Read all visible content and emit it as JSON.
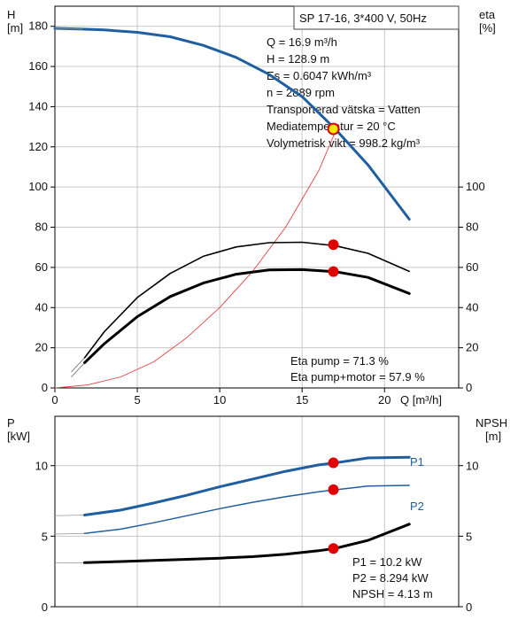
{
  "chart_data": [
    {
      "type": "line",
      "title": "SP 17-16, 3*400 V, 50Hz",
      "xlabel": "Q [m³/h]",
      "xlim": [
        0,
        24.5
      ],
      "xticks": [
        0,
        5,
        10,
        15,
        20
      ],
      "ylabel_left": [
        "H",
        "[m]"
      ],
      "ylim_left": [
        0,
        190
      ],
      "yticks_left": [
        0,
        20,
        40,
        60,
        80,
        100,
        120,
        140,
        160,
        180
      ],
      "ylabel_right": [
        "eta",
        "[%]"
      ],
      "ylim_right": [
        0,
        190
      ],
      "yticks_right": [
        0,
        20,
        40,
        60,
        80,
        100
      ],
      "grid": true,
      "series": [
        {
          "role": "head",
          "axis": "left",
          "color": "#1f5ea0",
          "x": [
            0,
            1.7,
            3,
            5,
            7,
            9,
            11,
            13,
            15,
            17,
            19,
            21.5
          ],
          "y": [
            179,
            178.6,
            178.2,
            177,
            174.8,
            170.5,
            164.5,
            156,
            145,
            129,
            111,
            84
          ]
        },
        {
          "role": "system-curve",
          "axis": "left",
          "color": "#e04040",
          "x": [
            0,
            2,
            4,
            6,
            8,
            10,
            12,
            14,
            16,
            17.2
          ],
          "y": [
            0,
            1.5,
            5.5,
            13,
            25,
            40,
            58,
            80,
            108,
            131
          ]
        },
        {
          "role": "eta-pump",
          "axis": "right",
          "color": "#000000",
          "x": [
            1.8,
            3,
            5,
            7,
            9,
            11,
            13,
            15,
            17,
            19,
            21.5
          ],
          "y": [
            15,
            28,
            45,
            57,
            65.5,
            70.2,
            72.3,
            72.5,
            70.8,
            67,
            58
          ]
        },
        {
          "role": "eta-pump-motor",
          "axis": "right",
          "color": "#000000",
          "x": [
            1.8,
            3,
            5,
            7,
            9,
            11,
            13,
            15,
            17,
            19,
            21.5
          ],
          "y": [
            12.5,
            22,
            35.5,
            45.5,
            52.2,
            56.6,
            58.7,
            58.9,
            57.9,
            55,
            47
          ]
        }
      ],
      "markers": [
        {
          "series": "head",
          "x": 16.9,
          "y": 128.9,
          "color": "#f2e600",
          "stroke": "#e00000"
        },
        {
          "series": "eta-pump",
          "x": 16.9,
          "y": 71.3,
          "color": "#e00000"
        },
        {
          "series": "eta-pump-motor",
          "x": 16.9,
          "y": 57.9,
          "color": "#e00000"
        }
      ],
      "info_box": [
        "Q = 16.9 m³/h",
        "H = 128.9 m",
        "Es = 0.6047 kWh/m³",
        "n = 2889 rpm",
        "Transporterad vätska = Vatten",
        "Mediatemperatur = 20 °C",
        "Volymetrisk vikt = 998.2 kg/m³"
      ],
      "annotations": [
        "Eta pump = 71.3 %",
        "Eta pump+motor = 57.9 %"
      ]
    },
    {
      "type": "line",
      "xlim": [
        0,
        24.5
      ],
      "ylabel_left": [
        "P",
        "[kW]"
      ],
      "ylim_left": [
        0,
        13.5
      ],
      "yticks_left": [
        0,
        5,
        10
      ],
      "ylabel_right": [
        "NPSH",
        "[m]"
      ],
      "ylim_right": [
        0,
        13.5
      ],
      "yticks_right": [
        0,
        5,
        10
      ],
      "grid": true,
      "series": [
        {
          "name": "P1",
          "axis": "left",
          "color": "#1f5ea0",
          "x": [
            0,
            1.8,
            4,
            6,
            8,
            10,
            12,
            14,
            16,
            17,
            19,
            21.5
          ],
          "y": [
            6.45,
            6.5,
            6.85,
            7.35,
            7.9,
            8.5,
            9.05,
            9.6,
            10.05,
            10.2,
            10.55,
            10.6
          ]
        },
        {
          "name": "P2",
          "axis": "left",
          "color": "#1f5ea0",
          "x": [
            0,
            1.8,
            4,
            6,
            8,
            10,
            12,
            14,
            16,
            17,
            19,
            21.5
          ],
          "y": [
            5.15,
            5.2,
            5.5,
            5.95,
            6.45,
            6.95,
            7.4,
            7.8,
            8.15,
            8.29,
            8.55,
            8.6
          ]
        },
        {
          "name": "NPSH",
          "axis": "right",
          "color": "#000000",
          "x": [
            0,
            1.8,
            4,
            6,
            8,
            10,
            12,
            14,
            16,
            17,
            19,
            21.5
          ],
          "y": [
            3.1,
            3.12,
            3.2,
            3.28,
            3.36,
            3.44,
            3.55,
            3.72,
            3.97,
            4.13,
            4.7,
            5.85
          ]
        }
      ],
      "series_labels": [
        "P1",
        "P2"
      ],
      "markers": [
        {
          "series": "P1",
          "x": 16.9,
          "y": 10.2,
          "color": "#e00000"
        },
        {
          "series": "P2",
          "x": 16.9,
          "y": 8.294,
          "color": "#e00000"
        },
        {
          "series": "NPSH",
          "x": 16.9,
          "y": 4.13,
          "color": "#e00000"
        }
      ],
      "annotations": [
        "P1 = 10.2 kW",
        "P2 = 8.294 kW",
        "NPSH = 4.13 m"
      ]
    }
  ]
}
